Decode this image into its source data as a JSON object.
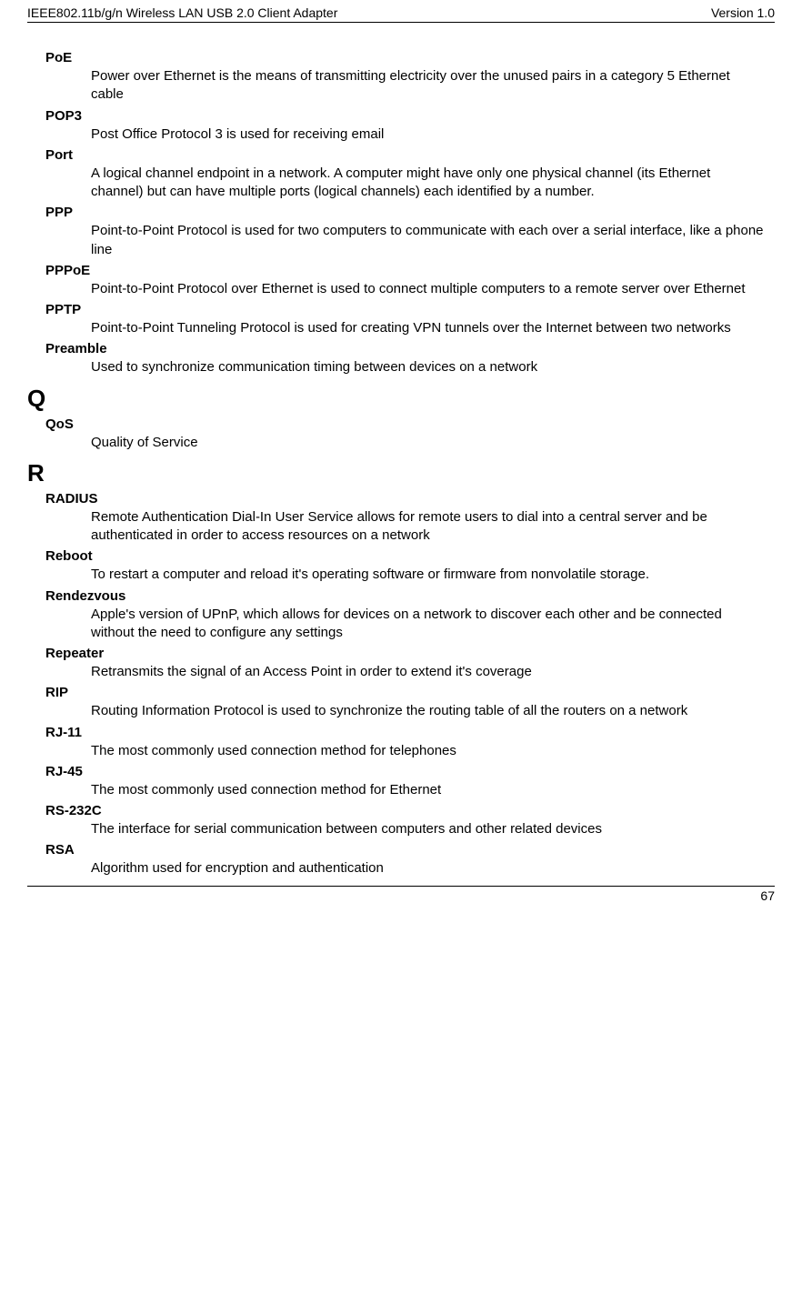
{
  "header": {
    "left": "IEEE802.11b/g/n Wireless LAN USB 2.0 Client Adapter",
    "right": "Version 1.0"
  },
  "footer": {
    "page": "67"
  },
  "groups": [
    {
      "letter": "",
      "entries": [
        {
          "term": "PoE",
          "definition": "Power over Ethernet is the means of transmitting electricity over the unused pairs in a category 5 Ethernet cable"
        },
        {
          "term": "POP3",
          "definition": "Post Office Protocol 3 is used for receiving email"
        },
        {
          "term": "Port",
          "definition": "A logical channel endpoint in a network. A computer might have only one physical channel (its Ethernet channel) but can have multiple ports (logical channels) each identified by a number."
        },
        {
          "term": "PPP",
          "definition": "Point-to-Point Protocol is used for two computers to communicate with each over a serial interface, like a phone line"
        },
        {
          "term": "PPPoE",
          "definition": "Point-to-Point Protocol over Ethernet is used to connect multiple computers to a remote server over Ethernet"
        },
        {
          "term": "PPTP",
          "definition": "Point-to-Point Tunneling Protocol is used for creating VPN tunnels over the Internet between two networks"
        },
        {
          "term": "Preamble",
          "definition": "Used to synchronize communication timing between devices on a network"
        }
      ]
    },
    {
      "letter": "Q",
      "entries": [
        {
          "term": "QoS",
          "definition": "Quality of Service"
        }
      ]
    },
    {
      "letter": "R",
      "entries": [
        {
          "term": "RADIUS",
          "definition": "Remote Authentication Dial-In User Service allows for remote users to dial into a central server and be authenticated in order to access resources on a network"
        },
        {
          "term": "Reboot",
          "definition": "To restart a computer and reload it's operating software or firmware from nonvolatile storage."
        },
        {
          "term": "Rendezvous",
          "definition": "Apple's version of UPnP, which allows for devices on a network to discover each other and be connected without the need to configure any settings"
        },
        {
          "term": "Repeater",
          "definition": "Retransmits the signal of an Access Point in order to extend it's coverage"
        },
        {
          "term": "RIP",
          "definition": "Routing Information Protocol is used to synchronize the routing table of all the routers on a network"
        },
        {
          "term": "RJ-11",
          "definition": "The most commonly used connection method for telephones"
        },
        {
          "term": "RJ-45",
          "definition": "The most commonly used connection method for Ethernet"
        },
        {
          "term": "RS-232C",
          "definition": "The interface for serial communication between computers and other related devices"
        },
        {
          "term": "RSA",
          "definition": "Algorithm used for encryption and authentication"
        }
      ]
    }
  ]
}
